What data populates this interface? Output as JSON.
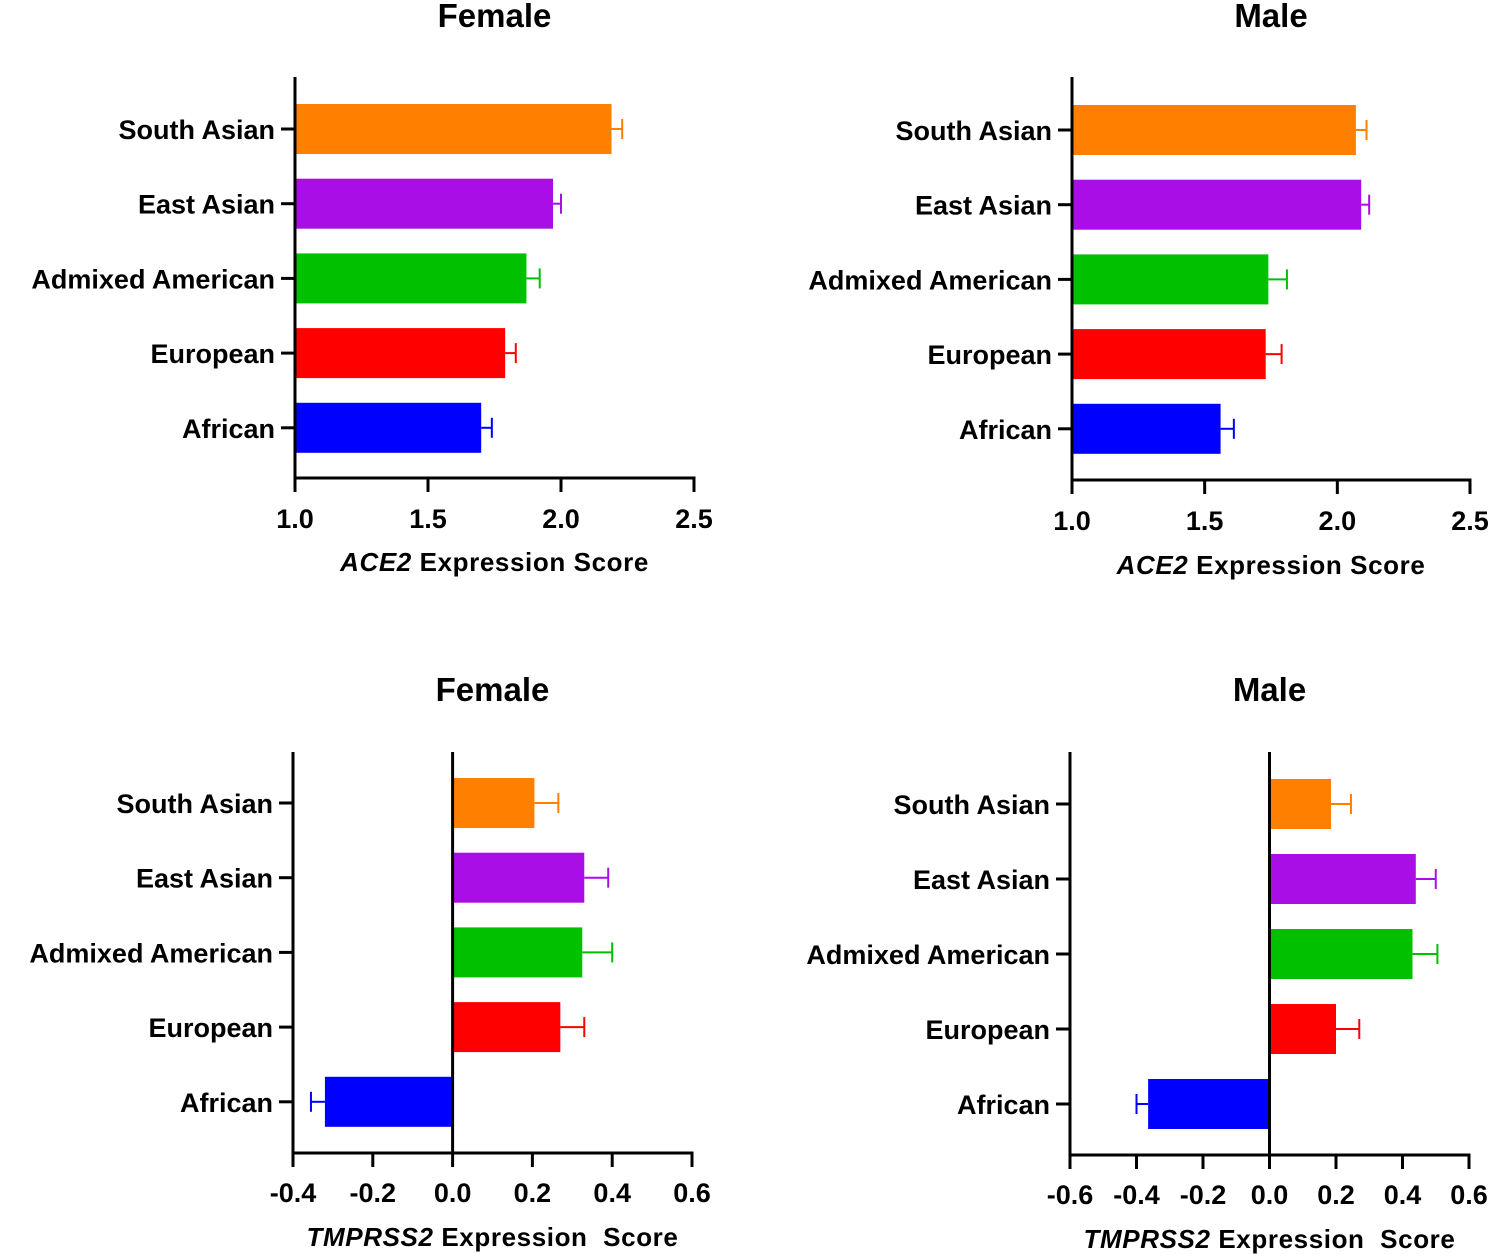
{
  "chart_data": [
    {
      "type": "bar",
      "orientation": "horizontal",
      "panel": "top-left",
      "title": "Female",
      "xlabel_gene": "ACE2",
      "xlabel_suffix": " Expression Score",
      "categories": [
        "South Asian",
        "East Asian",
        "Admixed American",
        "European",
        "African"
      ],
      "values": [
        2.19,
        1.97,
        1.87,
        1.79,
        1.7
      ],
      "errors": [
        0.04,
        0.03,
        0.05,
        0.04,
        0.04
      ],
      "colors": [
        "#FF8000",
        "#AA0EE6",
        "#00C000",
        "#FF0000",
        "#0000FF"
      ],
      "xlim": [
        1.0,
        2.5
      ],
      "xticks": [
        1.0,
        1.5,
        2.0,
        2.5
      ],
      "xtick_labels": [
        "1.0",
        "1.5",
        "2.0",
        "2.5"
      ]
    },
    {
      "type": "bar",
      "orientation": "horizontal",
      "panel": "top-right",
      "title": "Male",
      "xlabel_gene": "ACE2",
      "xlabel_suffix": " Expression Score",
      "categories": [
        "South Asian",
        "East Asian",
        "Admixed American",
        "European",
        "African"
      ],
      "values": [
        2.07,
        2.09,
        1.74,
        1.73,
        1.56
      ],
      "errors": [
        0.04,
        0.03,
        0.07,
        0.06,
        0.05
      ],
      "colors": [
        "#FF8000",
        "#AA0EE6",
        "#00C000",
        "#FF0000",
        "#0000FF"
      ],
      "xlim": [
        1.0,
        2.5
      ],
      "xticks": [
        1.0,
        1.5,
        2.0,
        2.5
      ],
      "xtick_labels": [
        "1.0",
        "1.5",
        "2.0",
        "2.5"
      ]
    },
    {
      "type": "bar",
      "orientation": "horizontal",
      "panel": "bottom-left",
      "title": "Female",
      "xlabel_gene": "TMPRSS2",
      "xlabel_suffix": " Expression  Score",
      "categories": [
        "South Asian",
        "East Asian",
        "Admixed American",
        "European",
        "African"
      ],
      "values": [
        0.205,
        0.33,
        0.325,
        0.27,
        -0.32
      ],
      "errors": [
        0.06,
        0.06,
        0.075,
        0.06,
        0.035
      ],
      "colors": [
        "#FF8000",
        "#AA0EE6",
        "#00C000",
        "#FF0000",
        "#0000FF"
      ],
      "xlim": [
        -0.4,
        0.6
      ],
      "xticks": [
        -0.4,
        -0.2,
        0.0,
        0.2,
        0.4,
        0.6
      ],
      "xtick_labels": [
        "-0.4",
        "-0.2",
        "0.0",
        "0.2",
        "0.4",
        "0.6"
      ]
    },
    {
      "type": "bar",
      "orientation": "horizontal",
      "panel": "bottom-right",
      "title": "Male",
      "xlabel_gene": "TMPRSS2",
      "xlabel_suffix": " Expression  Score",
      "categories": [
        "South Asian",
        "East Asian",
        "Admixed American",
        "European",
        "African"
      ],
      "values": [
        0.185,
        0.44,
        0.43,
        0.2,
        -0.365
      ],
      "errors": [
        0.06,
        0.06,
        0.075,
        0.07,
        0.035
      ],
      "colors": [
        "#FF8000",
        "#AA0EE6",
        "#00C000",
        "#FF0000",
        "#0000FF"
      ],
      "xlim": [
        -0.6,
        0.6
      ],
      "xticks": [
        -0.6,
        -0.4,
        -0.2,
        0.0,
        0.2,
        0.4,
        0.6
      ],
      "xtick_labels": [
        "-0.6",
        "-0.4",
        "-0.2",
        "0.0",
        "0.2",
        "0.4",
        "0.6"
      ]
    }
  ]
}
